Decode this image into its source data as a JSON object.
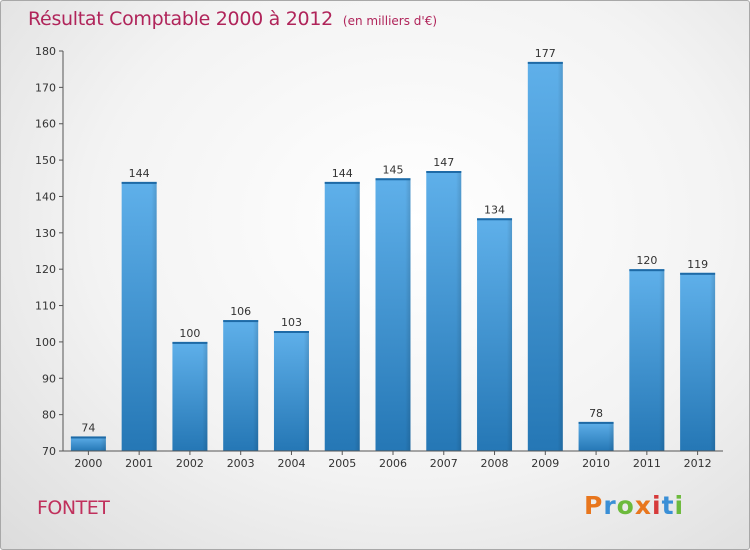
{
  "header": {
    "title": "Résultat Comptable 2000 à 2012",
    "unit": "(en milliers d'€)"
  },
  "footer": {
    "commune": "FONTET",
    "logo": "Proxiti",
    "logo_colors": [
      "#e8761d",
      "#3a8fd6",
      "#6cba3c",
      "#e8761d",
      "#d63a3a",
      "#3a8fd6",
      "#6cba3c"
    ]
  },
  "chart_data": {
    "type": "bar",
    "title": "Résultat Comptable 2000 à 2012",
    "subtitle": "(en milliers d'€)",
    "categories": [
      "2000",
      "2001",
      "2002",
      "2003",
      "2004",
      "2005",
      "2006",
      "2007",
      "2008",
      "2009",
      "2010",
      "2011",
      "2012"
    ],
    "values": [
      74,
      144,
      100,
      106,
      103,
      144,
      145,
      147,
      134,
      177,
      78,
      120,
      119
    ],
    "ylim": [
      70,
      180
    ],
    "yticks": [
      70,
      80,
      90,
      100,
      110,
      120,
      130,
      140,
      150,
      160,
      170,
      180
    ],
    "xlabel": "",
    "ylabel": "",
    "grid": false,
    "colors": {
      "bar_top": "#5fb0ea",
      "bar_bottom": "#2577b5",
      "axis": "#555555",
      "text": "#333333"
    }
  }
}
